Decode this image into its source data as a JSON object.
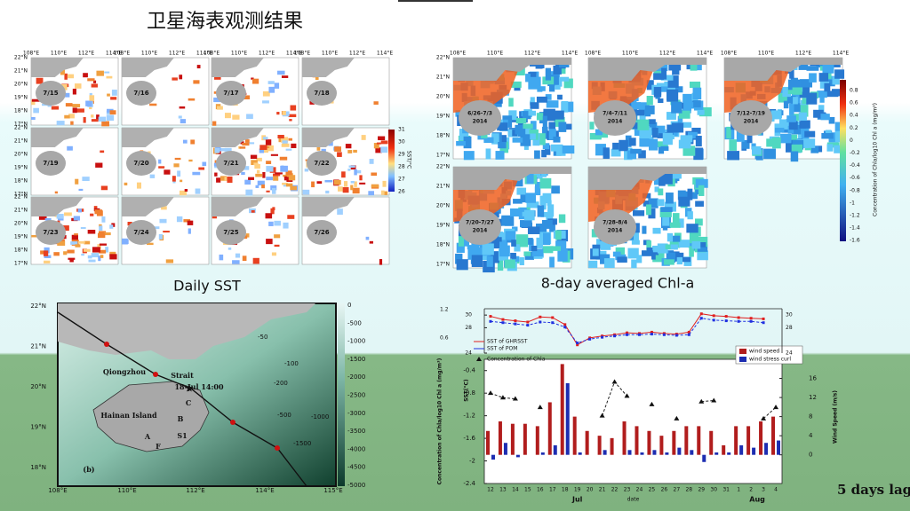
{
  "title": "卫星海表观测结果",
  "sst_panel": {
    "caption": "Daily SST",
    "dates": [
      "7/15",
      "7/16",
      "7/17",
      "7/18",
      "7/19",
      "7/20",
      "7/21",
      "7/22",
      "7/23",
      "7/24",
      "7/25",
      "7/26"
    ],
    "lon_labels": [
      "108°E",
      "110°E",
      "112°E",
      "114°E"
    ],
    "lat_labels": [
      "22°N",
      "21°N",
      "20°N",
      "19°N",
      "18°N",
      "17°N"
    ],
    "colorbar_label": "SST/°C",
    "colorbar_ticks": [
      "31",
      "30",
      "29",
      "28",
      "27",
      "26"
    ]
  },
  "chl_panel": {
    "caption": "8-day averaged Chl-a",
    "periods": [
      [
        "6/26-7/3",
        "2014"
      ],
      [
        "7/4-7/11",
        "2014"
      ],
      [
        "7/12-7/19",
        "2014"
      ],
      [
        "7/20-7/27",
        "2014"
      ],
      [
        "7/28-8/4",
        "2014"
      ]
    ],
    "lon_labels": [
      "108°E",
      "110°E",
      "112°E",
      "114°E"
    ],
    "lat_labels": [
      "22°N",
      "21°N",
      "20°N",
      "19°N",
      "18°N",
      "17°N"
    ],
    "colorbar_label": "Concentration of Chla/log10 Chl a (mg/m³)",
    "colorbar_ticks": [
      "0.8",
      "0.6",
      "0.4",
      "0.2",
      "0",
      "-0.2",
      "-0.4",
      "-0.6",
      "-0.8",
      "-1",
      "-1.2",
      "-1.4",
      "-1.6"
    ]
  },
  "bathy_map": {
    "labels": [
      "Qiongzhou",
      "Strait",
      "Hainan Island",
      "18-Jul 14:00",
      "(b)",
      "A",
      "B",
      "C",
      "F",
      "S1"
    ],
    "contours": [
      "-50",
      "-100",
      "-200",
      "-500",
      "-1000",
      "-1500"
    ],
    "lat_labels": [
      "22°N",
      "21°N",
      "20°N",
      "19°N",
      "18°N"
    ],
    "lon_labels": [
      "108°E",
      "110°E",
      "112°E",
      "114°E",
      "115°E"
    ],
    "colorbar_ticks": [
      "0",
      "-500",
      "-1000",
      "-1500",
      "-2000",
      "-2500",
      "-3000",
      "-3500",
      "-4000",
      "-4500",
      "-5000"
    ]
  },
  "lag_note": "5 days lag",
  "chart_data": {
    "type": "bar",
    "categories": [
      "12",
      "13",
      "14",
      "15",
      "16",
      "17",
      "18",
      "19",
      "20",
      "21",
      "22",
      "23",
      "24",
      "25",
      "26",
      "27",
      "28",
      "29",
      "30",
      "31",
      "1",
      "2",
      "3",
      "4"
    ],
    "month_labels": [
      "Jul",
      "Aug"
    ],
    "xlabel": "date",
    "ylabel": "Concentration of Chla/log10 Chl a (mg/m³)",
    "ylim": [
      -2.4,
      -0.2
    ],
    "yticks": [
      -2.4,
      -2,
      -1.6,
      -1.2,
      -0.8,
      -0.4
    ],
    "y2label": "Wind Speed (m/s)",
    "y2lim": [
      -6,
      20
    ],
    "y2ticks": [
      0,
      4,
      8,
      12,
      16
    ],
    "series": [
      {
        "name": "wind speed",
        "color": "#b11d1d",
        "axis": "y2",
        "values": [
          5,
          7,
          6.5,
          6.5,
          6,
          11,
          19,
          8,
          5,
          4,
          3.5,
          7,
          6,
          5,
          4,
          5,
          6,
          6,
          5,
          2,
          6,
          6,
          7,
          8
        ]
      },
      {
        "name": "wind stress curl",
        "color": "#1d2db1",
        "axis": "y2",
        "values": [
          -1,
          2.5,
          -0.5,
          0,
          0.5,
          2,
          15,
          0.5,
          0,
          1,
          0,
          1,
          0.5,
          1,
          0.5,
          1.5,
          1,
          -1.5,
          0.5,
          0.5,
          2,
          1.5,
          2.5,
          3
        ]
      }
    ],
    "chla": {
      "name": "Concentration of Chla",
      "values": [
        -0.8,
        -0.88,
        -0.9,
        null,
        -1.05,
        null,
        null,
        null,
        null,
        -1.2,
        -0.6,
        -0.85,
        null,
        -1.0,
        null,
        -1.25,
        null,
        -0.95,
        -0.93,
        null,
        null,
        null,
        -1.25,
        -1.05
      ]
    },
    "sst": {
      "ylabel": "SST(°C)",
      "ylim": [
        24,
        31
      ],
      "yticks": [
        24,
        28,
        30
      ],
      "upper_chla_ticks": [
        "1.2",
        "0.6"
      ],
      "series": [
        {
          "name": "SST of GHRSST",
          "color": "#e02020",
          "values": [
            29.8,
            29.3,
            29.1,
            28.9,
            29.7,
            29.6,
            28.5,
            25.3,
            26.4,
            26.7,
            26.9,
            27.2,
            27.1,
            27.3,
            27.1,
            27.0,
            27.3,
            30.2,
            29.9,
            29.8,
            29.6,
            29.5,
            29.4,
            null
          ]
        },
        {
          "name": "SST of POM",
          "color": "#2030e0",
          "values": [
            29.0,
            28.8,
            28.6,
            28.4,
            28.9,
            28.8,
            28.1,
            25.6,
            26.2,
            26.5,
            26.7,
            26.9,
            26.9,
            27.0,
            26.9,
            26.8,
            26.9,
            29.5,
            29.2,
            29.1,
            29.0,
            29.0,
            28.8,
            null
          ]
        }
      ]
    }
  }
}
